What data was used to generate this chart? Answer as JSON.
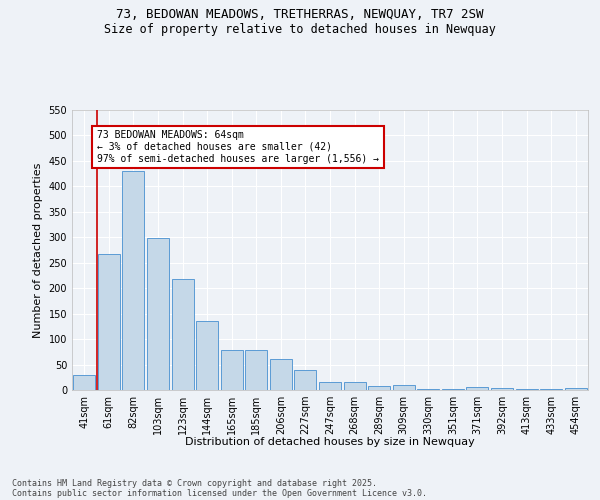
{
  "title_line1": "73, BEDOWAN MEADOWS, TRETHERRAS, NEWQUAY, TR7 2SW",
  "title_line2": "Size of property relative to detached houses in Newquay",
  "xlabel": "Distribution of detached houses by size in Newquay",
  "ylabel": "Number of detached properties",
  "categories": [
    "41sqm",
    "61sqm",
    "82sqm",
    "103sqm",
    "123sqm",
    "144sqm",
    "165sqm",
    "185sqm",
    "206sqm",
    "227sqm",
    "247sqm",
    "268sqm",
    "289sqm",
    "309sqm",
    "330sqm",
    "351sqm",
    "371sqm",
    "392sqm",
    "413sqm",
    "433sqm",
    "454sqm"
  ],
  "values": [
    30,
    268,
    430,
    298,
    218,
    135,
    78,
    78,
    60,
    40,
    15,
    15,
    8,
    10,
    2,
    2,
    5,
    4,
    2,
    2,
    3
  ],
  "bar_color": "#c5d8e8",
  "bar_edge_color": "#5b9bd5",
  "annotation_box_text": "73 BEDOWAN MEADOWS: 64sqm\n← 3% of detached houses are smaller (42)\n97% of semi-detached houses are larger (1,556) →",
  "annotation_box_color": "#ffffff",
  "annotation_box_edge_color": "#cc0000",
  "vline_color": "#cc0000",
  "ylim": [
    0,
    550
  ],
  "yticks": [
    0,
    50,
    100,
    150,
    200,
    250,
    300,
    350,
    400,
    450,
    500,
    550
  ],
  "background_color": "#eef2f7",
  "grid_color": "#ffffff",
  "footer_line1": "Contains HM Land Registry data © Crown copyright and database right 2025.",
  "footer_line2": "Contains public sector information licensed under the Open Government Licence v3.0.",
  "title_fontsize": 9,
  "subtitle_fontsize": 8.5,
  "axis_label_fontsize": 8,
  "tick_fontsize": 7,
  "annotation_fontsize": 7,
  "footer_fontsize": 6
}
